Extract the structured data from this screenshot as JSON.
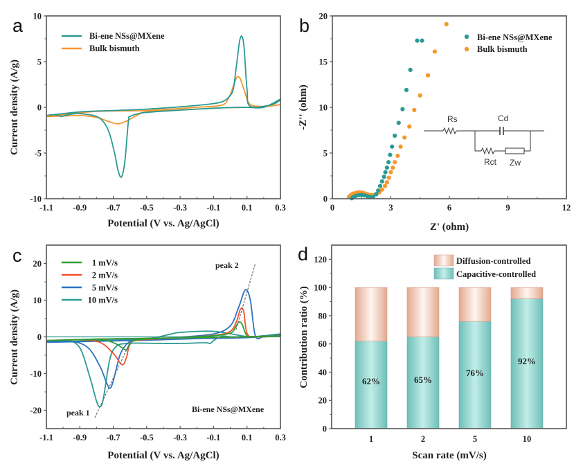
{
  "figure": {
    "panels": [
      "a",
      "b",
      "c",
      "d"
    ]
  },
  "colors": {
    "teal": "#2a9a94",
    "orange": "#f7962b",
    "green": "#2e9d34",
    "red": "#f4512b",
    "blue": "#2c74c0",
    "cap_fill": "#9fdcd6",
    "diff_fill": "#f3cbb8"
  },
  "chart_data": [
    {
      "panel": "a",
      "type": "line",
      "title": "",
      "xlabel": "Potential (V vs. Ag/AgCl)",
      "ylabel": "Current density (A/g)",
      "xlim": [
        -1.1,
        0.3
      ],
      "ylim": [
        -10,
        10
      ],
      "xticks": [
        "-1.1",
        "-0.9",
        "-0.7",
        "-0.5",
        "-0.3",
        "-0.1",
        "0.1",
        "0.3"
      ],
      "yticks": [
        "-10",
        "-5",
        "0",
        "5",
        "10"
      ],
      "legend_position": "top-left",
      "series": [
        {
          "name": "Bi-ene NSs@MXene",
          "color": "#2a9a94",
          "x": [
            -1.1,
            -1.05,
            -1.01,
            -0.97,
            -0.9,
            -0.8,
            -0.75,
            -0.72,
            -0.69,
            -0.67,
            -0.65,
            -0.63,
            -0.61,
            -0.6,
            -0.55,
            -0.5,
            -0.3,
            -0.1,
            0.0,
            0.1,
            0.2,
            0.3,
            0.25,
            0.12,
            0.1,
            0.08,
            0.06,
            0.04,
            0.02,
            0.0,
            -0.05,
            -0.15,
            -0.3,
            -0.5,
            -0.7,
            -0.9,
            -1.1
          ],
          "y": [
            -0.9,
            -0.8,
            -1.0,
            -0.8,
            -0.7,
            -1.0,
            -1.8,
            -3.0,
            -5.2,
            -7.0,
            -7.6,
            -5.8,
            -1.6,
            -1.0,
            -0.7,
            -0.55,
            -0.3,
            -0.1,
            -0.03,
            0.0,
            0.0,
            0.9,
            0.3,
            0.1,
            2.0,
            7.0,
            7.6,
            5.0,
            2.2,
            1.3,
            0.6,
            0.3,
            0.05,
            -0.2,
            -0.35,
            -0.5,
            -0.9
          ]
        },
        {
          "name": "Bulk bismuth",
          "color": "#f7962b",
          "x": [
            -1.1,
            -1.0,
            -0.9,
            -0.8,
            -0.72,
            -0.67,
            -0.62,
            -0.55,
            -0.5,
            -0.3,
            -0.1,
            0.0,
            0.1,
            0.2,
            0.3,
            0.2,
            0.12,
            0.09,
            0.06,
            0.04,
            0.02,
            -0.01,
            -0.05,
            -0.2,
            -0.5,
            -0.8,
            -1.1
          ],
          "y": [
            -1.0,
            -0.95,
            -0.9,
            -1.1,
            -1.6,
            -1.8,
            -1.5,
            -0.8,
            -0.5,
            -0.3,
            -0.1,
            -0.03,
            0.0,
            0.05,
            0.3,
            0.1,
            0.3,
            1.5,
            3.1,
            3.3,
            2.4,
            1.0,
            0.25,
            0.0,
            -0.35,
            -0.45,
            -1.0
          ]
        }
      ]
    },
    {
      "panel": "b",
      "type": "scatter",
      "title": "",
      "xlabel": "Z' (ohm)",
      "ylabel": "-Z'' (ohm)",
      "xlim": [
        0,
        12
      ],
      "ylim": [
        0,
        20
      ],
      "xticks": [
        "0",
        "3",
        "6",
        "9",
        "12"
      ],
      "yticks": [
        "0",
        "5",
        "10",
        "15",
        "20"
      ],
      "legend_position": "top-right",
      "series": [
        {
          "name": "Bi-ene NSs@MXene",
          "color": "#2a9a94",
          "x": [
            1.0,
            1.1,
            1.2,
            1.35,
            1.5,
            1.65,
            1.8,
            1.95,
            2.1,
            2.25,
            2.35,
            2.45,
            2.55,
            2.65,
            2.72,
            2.8,
            2.88,
            2.96,
            3.06,
            3.2,
            3.4,
            3.6,
            3.8,
            4.0,
            4.35,
            4.6
          ],
          "y": [
            0.05,
            0.2,
            0.3,
            0.38,
            0.4,
            0.36,
            0.28,
            0.18,
            0.2,
            0.5,
            0.9,
            1.4,
            1.9,
            2.4,
            2.9,
            3.4,
            4.0,
            4.8,
            5.7,
            6.9,
            8.3,
            9.8,
            11.9,
            14.1,
            17.3,
            17.3
          ]
        },
        {
          "name": "Bulk bismuth",
          "color": "#f7962b",
          "x": [
            0.85,
            0.95,
            1.05,
            1.2,
            1.35,
            1.5,
            1.65,
            1.8,
            1.95,
            2.1,
            2.25,
            2.4,
            2.55,
            2.7,
            2.8,
            2.9,
            3.0,
            3.1,
            3.2,
            3.35,
            3.5,
            3.7,
            3.95,
            4.2,
            4.5,
            4.9,
            5.25,
            5.85
          ],
          "y": [
            0.2,
            0.4,
            0.55,
            0.65,
            0.7,
            0.68,
            0.6,
            0.5,
            0.42,
            0.4,
            0.5,
            0.7,
            1.0,
            1.4,
            1.8,
            2.3,
            2.9,
            3.4,
            4.0,
            4.7,
            5.7,
            6.7,
            7.9,
            9.7,
            11.3,
            13.5,
            16.1,
            19.1
          ]
        }
      ],
      "inset": {
        "type": "equivalent-circuit",
        "labels": [
          "Rs",
          "Cd",
          "Rct",
          "Zw"
        ]
      }
    },
    {
      "panel": "c",
      "type": "line",
      "title": "",
      "xlabel": "Potential (V vs. Ag/AgCl)",
      "ylabel": "Current density (A/g)",
      "xlim": [
        -1.1,
        0.3
      ],
      "ylim": [
        -25,
        25
      ],
      "xticks": [
        "-1.1",
        "-0.9",
        "-0.7",
        "-0.5",
        "-0.3",
        "-0.1",
        "0.1",
        "0.3"
      ],
      "yticks": [
        "-20",
        "-10",
        "0",
        "10",
        "20"
      ],
      "legend_position": "top-left",
      "annotations": [
        "peak 1",
        "peak 2",
        "Bi-ene NSs@MXene"
      ],
      "series": [
        {
          "name": "1 mV/s",
          "color": "#2e9d34",
          "x": [
            -1.1,
            -0.9,
            -0.75,
            -0.68,
            -0.64,
            -0.62,
            -0.6,
            -0.55,
            -0.3,
            -0.1,
            0.0,
            0.03,
            0.05,
            0.07,
            0.1,
            0.15,
            0.3,
            0.1,
            -0.2,
            -0.5,
            -0.8,
            -1.1
          ],
          "y": [
            -1.0,
            -0.8,
            -0.9,
            -2.0,
            -3.2,
            -3.5,
            -2.0,
            -0.8,
            -0.2,
            0.3,
            1.0,
            2.5,
            4.0,
            3.5,
            0.3,
            0.0,
            0.3,
            0.0,
            -0.2,
            -0.4,
            -0.6,
            -1.0
          ]
        },
        {
          "name": "2 mV/s",
          "color": "#f4512b",
          "x": [
            -1.1,
            -0.9,
            -0.78,
            -0.7,
            -0.66,
            -0.64,
            -0.62,
            -0.6,
            -0.55,
            -0.3,
            -0.1,
            0.0,
            0.04,
            0.06,
            0.08,
            0.1,
            0.15,
            0.3,
            0.1,
            -0.2,
            -0.5,
            -0.8,
            -1.1
          ],
          "y": [
            -1.0,
            -0.8,
            -1.5,
            -4.5,
            -7.0,
            -7.5,
            -5.5,
            -2.0,
            -0.9,
            -0.2,
            0.4,
            1.5,
            4.5,
            7.5,
            7.0,
            1.0,
            0.0,
            0.3,
            0.0,
            -0.2,
            -0.4,
            -0.6,
            -1.0
          ]
        },
        {
          "name": "5 mV/s",
          "color": "#2c74c0",
          "x": [
            -1.1,
            -0.95,
            -0.85,
            -0.78,
            -0.74,
            -0.72,
            -0.7,
            -0.66,
            -0.62,
            -0.58,
            -0.5,
            -0.3,
            -0.1,
            0.0,
            0.05,
            0.09,
            0.12,
            0.15,
            0.2,
            0.3,
            0.1,
            -0.2,
            -0.5,
            -0.8,
            -1.1
          ],
          "y": [
            -1.2,
            -1.2,
            -3.0,
            -8.0,
            -12.5,
            -14.0,
            -12.0,
            -5.0,
            -2.0,
            -1.0,
            -0.8,
            -0.1,
            0.8,
            3.0,
            8.0,
            12.8,
            10.0,
            0.3,
            0.0,
            0.5,
            -0.2,
            -0.5,
            -0.9,
            -1.2,
            -1.5
          ]
        },
        {
          "name": "10 mV/s",
          "color": "#2a9a94",
          "x": [
            -1.1,
            -0.98,
            -0.9,
            -0.84,
            -0.8,
            -0.78,
            -0.76,
            -0.72,
            -0.68,
            -0.62,
            -0.55,
            -0.4,
            -0.3,
            -0.15,
            -0.12,
            -0.1,
            -0.05,
            0.0,
            0.06,
            0.1,
            0.13,
            0.16,
            0.18,
            0.19,
            0.25,
            0.3,
            0.2,
            0.1,
            -0.1,
            -0.3,
            -0.36,
            -0.5,
            -0.8,
            -1.1
          ],
          "y": [
            -1.5,
            -1.0,
            -3.0,
            -11.0,
            -17.5,
            -19.0,
            -17.0,
            -6.0,
            -2.5,
            -1.8,
            -1.7,
            -1.8,
            -1.8,
            -1.6,
            -1.8,
            -1.0,
            0.2,
            0.0,
            0.0,
            0.1,
            0.1,
            0.1,
            0.2,
            0.3,
            0.4,
            0.8,
            0.3,
            0.1,
            1.5,
            1.2,
            0.7,
            -0.5,
            -1.0,
            -1.5
          ]
        }
      ]
    },
    {
      "panel": "d",
      "type": "bar",
      "stacked": true,
      "title": "",
      "xlabel": "Scan rate (mV/s)",
      "ylabel": "Contribution ratio (%)",
      "ylim": [
        0,
        130
      ],
      "yticks": [
        "0",
        "20",
        "40",
        "60",
        "80",
        "100",
        "120"
      ],
      "categories": [
        "1",
        "2",
        "5",
        "10"
      ],
      "legend_position": "top-right",
      "series": [
        {
          "name": "Capacitive-controlled",
          "values": [
            62,
            65,
            76,
            92
          ],
          "color": "#9fdcd6"
        },
        {
          "name": "Diffusion-controlled",
          "values": [
            38,
            35,
            24,
            8
          ],
          "color": "#f3cbb8"
        }
      ],
      "data_labels": [
        "62%",
        "65%",
        "76%",
        "92%"
      ]
    }
  ]
}
